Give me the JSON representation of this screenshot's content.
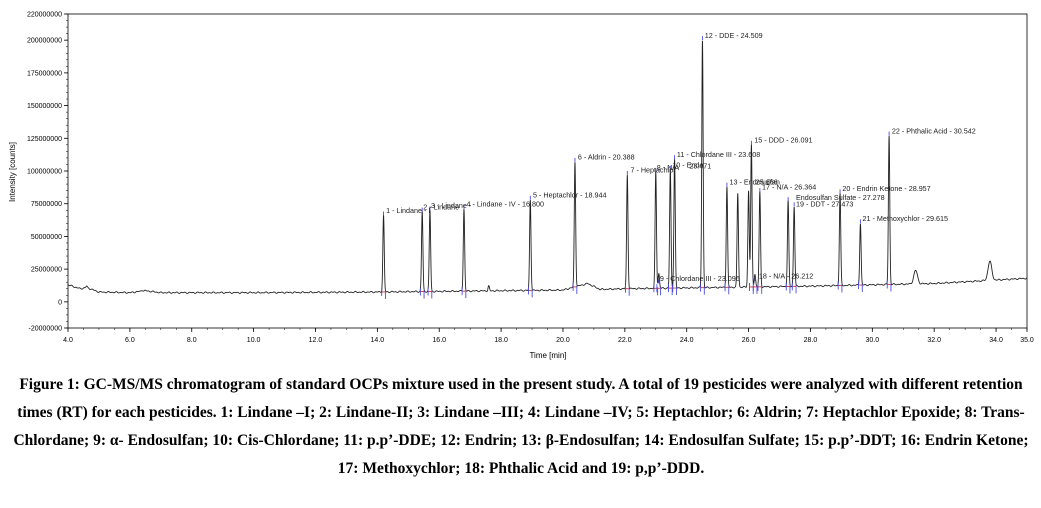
{
  "chart_data": {
    "type": "line",
    "xlabel": "Time [min]",
    "ylabel": "Intensity [counts]",
    "xlim": [
      4.0,
      35.0
    ],
    "ylim": [
      -20000000,
      220000000
    ],
    "x_ticks": [
      "4.0",
      "6.0",
      "8.0",
      "10.0",
      "12.0",
      "14.0",
      "16.0",
      "18.0",
      "20.0",
      "22.0",
      "24.0",
      "26.0",
      "28.0",
      "30.0",
      "32.0",
      "34.0",
      "35.0"
    ],
    "x_tick_values": [
      4,
      6,
      8,
      10,
      12,
      14,
      16,
      18,
      20,
      22,
      24,
      26,
      28,
      30,
      32,
      34,
      35
    ],
    "y_ticks": [
      "220000000",
      "200000000",
      "175000000",
      "150000000",
      "125000000",
      "100000000",
      "75000000",
      "50000000",
      "25000000",
      "0",
      "-20000000"
    ],
    "y_tick_values": [
      220000000,
      200000000,
      175000000,
      150000000,
      125000000,
      100000000,
      75000000,
      50000000,
      25000000,
      0,
      -20000000
    ],
    "baseline": [
      [
        4.0,
        13000000
      ],
      [
        4.4,
        10000000
      ],
      [
        4.6,
        11000000
      ],
      [
        5.0,
        7500000
      ],
      [
        6.0,
        7000000
      ],
      [
        6.5,
        8500000
      ],
      [
        7.0,
        7000000
      ],
      [
        10.0,
        7000000
      ],
      [
        14.0,
        7500000
      ],
      [
        18.0,
        8500000
      ],
      [
        20.0,
        9000000
      ],
      [
        20.8,
        14000000
      ],
      [
        21.2,
        9500000
      ],
      [
        22.0,
        10000000
      ],
      [
        25.0,
        11000000
      ],
      [
        28.0,
        12000000
      ],
      [
        30.0,
        13000000
      ],
      [
        32.0,
        14000000
      ],
      [
        35.0,
        18000000
      ]
    ],
    "small_peaks": [
      {
        "rt": 4.6,
        "height": 12000000
      },
      {
        "rt": 6.4,
        "height": 9000000
      },
      {
        "rt": 17.6,
        "height": 12000000
      },
      {
        "rt": 23.1,
        "height": 18000000
      },
      {
        "rt": 26.2,
        "height": 17000000
      },
      {
        "rt": 31.4,
        "height": 24000000
      },
      {
        "rt": 33.8,
        "height": 31000000
      }
    ],
    "peaks": [
      {
        "label": "1 - Lindane - I",
        "rt": 14.2,
        "height": 66000000
      },
      {
        "label": "2 - Lindane",
        "rt": 15.45,
        "height": 69000000
      },
      {
        "label": "3 - Lindane -",
        "rt": 15.7,
        "height": 70000000
      },
      {
        "label": "4 - Lindane - IV - 16.800",
        "rt": 16.8,
        "height": 71000000
      },
      {
        "label": "5 - Heptachlor - 18.944",
        "rt": 18.944,
        "height": 78000000
      },
      {
        "label": "6 - Aldrin - 20.388",
        "rt": 20.388,
        "height": 107000000
      },
      {
        "label": "7 - Heptachlor",
        "rt": 22.08,
        "height": 97000000
      },
      {
        "label": "8 - N/A",
        "rt": 23.0,
        "height": 99000000
      },
      {
        "label": "9 - Chlordane III - 23.096",
        "rt": 23.096,
        "height": 14000000
      },
      {
        "label": "10 - Endo",
        "rt": 23.47,
        "height": 101000000
      },
      {
        "label": "11 - Chlordane III - 23.608",
        "rt": 23.608,
        "height": 109000000
      },
      {
        "label": "12 - DDE - 24.509",
        "rt": 24.509,
        "height": 200000000
      },
      {
        "label": "13 - Endosulfan",
        "rt": 25.3,
        "height": 88000000
      },
      {
        "label": "15 - DDD - 26.091",
        "rt": 26.091,
        "height": 120000000
      },
      {
        "label": "17 - N/A - 26.364",
        "rt": 26.364,
        "height": 84000000
      },
      {
        "label": "18 - N/A - 26.212",
        "rt": 26.212,
        "height": 16000000
      },
      {
        "label": "19 - DDT - 27.473",
        "rt": 27.473,
        "height": 73000000
      },
      {
        "label": "Endosulfan Sulfate - 27.278",
        "rt": 27.278,
        "height": 77000000
      },
      {
        "label": "20 - Endrin Ketone - 28.957",
        "rt": 28.957,
        "height": 83000000
      },
      {
        "label": "21 - Methoxychlor - 29.615",
        "rt": 29.615,
        "height": 60000000
      },
      {
        "label": "22 - Phthalic Acid - 30.542",
        "rt": 30.542,
        "height": 127000000
      }
    ],
    "extra_peaks": [
      {
        "rt": 25.65,
        "height": 83000000
      },
      {
        "rt": 26.0,
        "height": 85000000
      }
    ],
    "annotations": [
      {
        "text": "1 - Lindane - I",
        "rt": 14.25,
        "y": 67000000
      },
      {
        "text": "2 - Lindane",
        "rt": 15.45,
        "y": 70000000
      },
      {
        "text": "3 - Lindane -",
        "rt": 15.7,
        "y": 71000000
      },
      {
        "text": "4 - Lindane - IV - 16.800",
        "rt": 16.85,
        "y": 72000000
      },
      {
        "text": "5 - Heptachlor - 18.944",
        "rt": 19.0,
        "y": 79000000
      },
      {
        "text": "6 - Aldrin - 20.388",
        "rt": 20.45,
        "y": 108000000
      },
      {
        "text": "7 - Heptachlor",
        "rt": 22.15,
        "y": 98000000
      },
      {
        "text": "8 - N/A",
        "rt": 23.0,
        "y": 100000000
      },
      {
        "text": "10 - Endo",
        "rt": 23.5,
        "y": 102000000
      },
      {
        "text": "23.471",
        "rt": 24.05,
        "y": 101000000
      },
      {
        "text": "11 - Chlordane III - 23.608",
        "rt": 23.65,
        "y": 110000000
      },
      {
        "text": "12 - DDE - 24.509",
        "rt": 24.55,
        "y": 201000000
      },
      {
        "text": "13 - Endosulfan",
        "rt": 25.35,
        "y": 89000000
      },
      {
        "text": "25.666",
        "rt": 26.2,
        "y": 89000000
      },
      {
        "text": "15 - DDD - 26.091",
        "rt": 26.15,
        "y": 121000000
      },
      {
        "text": "17 - N/A - 26.364",
        "rt": 26.4,
        "y": 85000000
      },
      {
        "text": "Endosulfan Sulfate - 27.278",
        "rt": 27.5,
        "y": 77000000
      },
      {
        "text": "19 - DDT - 27.473",
        "rt": 27.5,
        "y": 72000000
      },
      {
        "text": "20 - Endrin Ketone - 28.957",
        "rt": 29.0,
        "y": 84000000
      },
      {
        "text": "21 - Methoxychlor - 29.615",
        "rt": 29.65,
        "y": 61000000
      },
      {
        "text": "22 - Phthalic Acid - 30.542",
        "rt": 30.6,
        "y": 128000000
      },
      {
        "text": "9 - Chlordane III - 23.096",
        "rt": 23.1,
        "y": 15000000
      },
      {
        "text": "18 - N/A - 26.212",
        "rt": 26.3,
        "y": 17000000
      }
    ]
  },
  "caption": "Figure 1: GC-MS/MS chromatogram of standard OCPs mixture used in the present study. A total of 19 pesticides were analyzed with different retention times (RT) for each pesticides. 1: Lindane –I; 2: Lindane-II; 3: Lindane –III; 4: Lindane –IV; 5: Heptachlor; 6: Aldrin; 7: Heptachlor Epoxide; 8: Trans-Chlordane; 9: α- Endosulfan; 10: Cis-Chlordane; 11: p.p’-DDE; 12: Endrin; 13: β-Endosulfan; 14: Endosulfan Sulfate; 15: p.p’-DDT; 16: Endrin Ketone; 17: Methoxychlor; 18: Phthalic Acid and 19: p,p’-DDD."
}
